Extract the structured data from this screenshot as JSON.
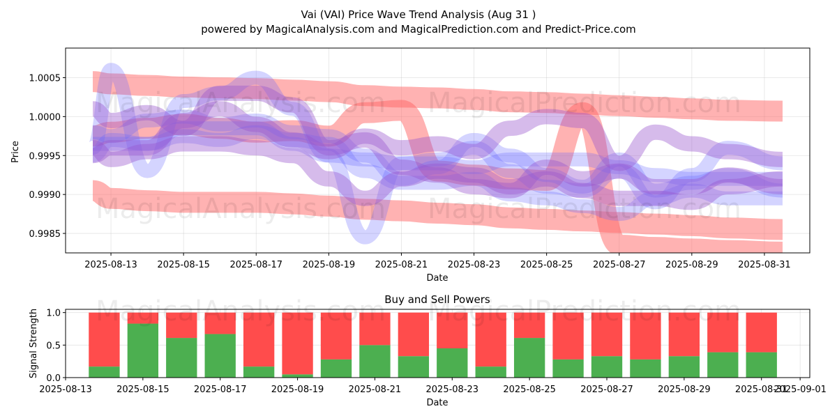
{
  "header": {
    "title": "Vai (VAI) Price Wave Trend Analysis (Aug 31 )",
    "subtitle": "powered by MagicalAnalysis.com and MagicalPrediction.com and Predict-Price.com"
  },
  "watermarks": [
    "MagicalAnalysis.com",
    "MagicalPrediction.com"
  ],
  "colors": {
    "red_band": "#ff6666",
    "blue_band": "#6666ff",
    "purple_band": "#9955cc",
    "buy": "#4caf50",
    "sell": "#ff4c4c"
  },
  "chart_data": [
    {
      "type": "area",
      "title": "",
      "xlabel": "Date",
      "ylabel": "Price",
      "x_ticks": [
        "2025-08-13",
        "2025-08-15",
        "2025-08-17",
        "2025-08-19",
        "2025-08-21",
        "2025-08-23",
        "2025-08-25",
        "2025-08-27",
        "2025-08-29",
        "2025-08-31"
      ],
      "y_ticks": [
        "0.9985",
        "0.9990",
        "0.9995",
        "1.0000",
        "1.0005"
      ],
      "xlim": [
        "2025-08-11T18:00",
        "2025-09-01T06:00"
      ],
      "ylim": [
        0.99825,
        1.00088
      ],
      "grid": true,
      "dates": [
        "2025-08-12T12:00",
        "2025-08-13",
        "2025-08-14",
        "2025-08-15",
        "2025-08-16",
        "2025-08-17",
        "2025-08-18",
        "2025-08-19",
        "2025-08-20",
        "2025-08-21",
        "2025-08-22",
        "2025-08-23",
        "2025-08-24",
        "2025-08-25",
        "2025-08-26",
        "2025-08-27",
        "2025-08-28",
        "2025-08-29",
        "2025-08-30",
        "2025-08-31T12:00"
      ],
      "series": [
        {
          "color": "red",
          "values": [
            1.00045,
            1.00042,
            1.0004,
            1.00038,
            1.00037,
            1.00036,
            1.00034,
            1.00032,
            1.00027,
            1.00025,
            1.00024,
            1.00022,
            1.00019,
            1.00018,
            1.00016,
            1.00014,
            1.00012,
            1.0001,
            1.00008,
            1.00007
          ]
        },
        {
          "color": "red",
          "values": [
            0.99905,
            0.99895,
            0.99892,
            0.9989,
            0.9989,
            0.9989,
            0.99888,
            0.99885,
            0.99881,
            0.99879,
            0.99876,
            0.99874,
            0.9987,
            0.99868,
            0.99866,
            0.99864,
            0.99862,
            0.9986,
            0.99857,
            0.99855
          ]
        },
        {
          "color": "red",
          "values": [
            0.99975,
            0.9998,
            0.99985,
            0.9999,
            0.99985,
            0.9998,
            0.99982,
            0.99975,
            1.00005,
            1.00008,
            0.9993,
            0.99925,
            0.9992,
            0.99918,
            1.00005,
            0.99835,
            0.99832,
            0.9983,
            0.99828,
            0.99826
          ]
        },
        {
          "color": "blue",
          "values": [
            0.99965,
            0.99965,
            0.99965,
            0.99985,
            0.99985,
            0.99985,
            0.99965,
            0.9995,
            0.99945,
            0.9994,
            0.9994,
            0.99935,
            0.99945,
            0.99945,
            0.99945,
            0.99935,
            0.99925,
            0.9992,
            0.9992,
            0.9992
          ]
        },
        {
          "color": "blue",
          "values": [
            0.9998,
            0.99975,
            0.99995,
            1.0,
            0.9999,
            0.99995,
            0.9998,
            0.99975,
            0.9995,
            0.9992,
            0.99935,
            0.9997,
            0.9995,
            0.99925,
            0.9991,
            0.99945,
            0.99905,
            0.99915,
            0.99925,
            0.99905
          ]
        },
        {
          "color": "blue",
          "values": [
            0.9996,
            1.0006,
            0.9993,
            1.0002,
            1.0003,
            1.0005,
            1.0001,
            0.9995,
            0.99845,
            0.9994,
            0.99945,
            0.9996,
            0.9993,
            0.9991,
            0.99905,
            0.9993,
            0.9989,
            0.99925,
            0.9996,
            0.9994
          ]
        },
        {
          "color": "blue",
          "values": [
            0.9995,
            0.9997,
            0.99965,
            0.99975,
            0.9997,
            0.9998,
            0.9997,
            0.99965,
            0.9993,
            0.99915,
            0.99915,
            0.9992,
            0.999,
            0.99895,
            0.99885,
            0.99875,
            0.99895,
            0.99905,
            0.99895,
            0.99895
          ]
        },
        {
          "color": "purple",
          "values": [
            0.9995,
            0.9996,
            0.9996,
            0.99995,
            1.0001,
            0.9999,
            0.9997,
            0.99955,
            0.99975,
            0.9996,
            0.99965,
            0.99955,
            0.99985,
            1.0,
            0.99995,
            0.9994,
            0.9998,
            0.99965,
            0.99955,
            0.99945
          ]
        },
        {
          "color": "purple",
          "values": [
            0.9996,
            0.99945,
            0.99955,
            0.99965,
            0.99965,
            0.9996,
            0.9995,
            0.9992,
            0.99895,
            0.9992,
            0.9993,
            0.99925,
            0.9991,
            0.9992,
            0.99905,
            0.99895,
            0.99895,
            0.9989,
            0.9991,
            0.9992
          ]
        },
        {
          "color": "purple",
          "values": [
            1.0001,
            0.99995,
            1.00005,
            0.99985,
            1.0003,
            1.0003,
            1.00015,
            0.9996,
            0.9997,
            0.99935,
            0.99925,
            0.9991,
            0.99905,
            0.99935,
            0.9992,
            0.9993,
            0.9991,
            0.9991,
            0.99925,
            0.9991
          ]
        }
      ]
    },
    {
      "type": "bar",
      "title": "Buy and Sell Powers",
      "xlabel": "Date",
      "ylabel": "Signal Strength",
      "x_ticks": [
        "2025-08-13",
        "2025-08-15",
        "2025-08-17",
        "2025-08-19",
        "2025-08-21",
        "2025-08-23",
        "2025-08-25",
        "2025-08-27",
        "2025-08-29",
        "2025-08-31",
        "2025-09-01"
      ],
      "y_ticks": [
        "0.0",
        "0.5",
        "1.0"
      ],
      "xlim": [
        "2025-08-13",
        "2025-09-01T06:00"
      ],
      "ylim": [
        0,
        1.05
      ],
      "grid": true,
      "categories": [
        "2025-08-14",
        "2025-08-15",
        "2025-08-16",
        "2025-08-17",
        "2025-08-18",
        "2025-08-19",
        "2025-08-20",
        "2025-08-21",
        "2025-08-22",
        "2025-08-23",
        "2025-08-24",
        "2025-08-25",
        "2025-08-26",
        "2025-08-27",
        "2025-08-28",
        "2025-08-29",
        "2025-08-30",
        "2025-08-31"
      ],
      "series": [
        {
          "role": "buy",
          "values": [
            0.17,
            0.83,
            0.61,
            0.67,
            0.17,
            0.05,
            0.28,
            0.5,
            0.33,
            0.45,
            0.17,
            0.61,
            0.28,
            0.33,
            0.28,
            0.33,
            0.39,
            0.39
          ]
        },
        {
          "role": "sell",
          "values": [
            0.83,
            0.17,
            0.39,
            0.33,
            0.83,
            0.95,
            0.72,
            0.5,
            0.67,
            0.55,
            0.83,
            0.39,
            0.72,
            0.67,
            0.72,
            0.67,
            0.61,
            0.61
          ]
        }
      ]
    }
  ]
}
